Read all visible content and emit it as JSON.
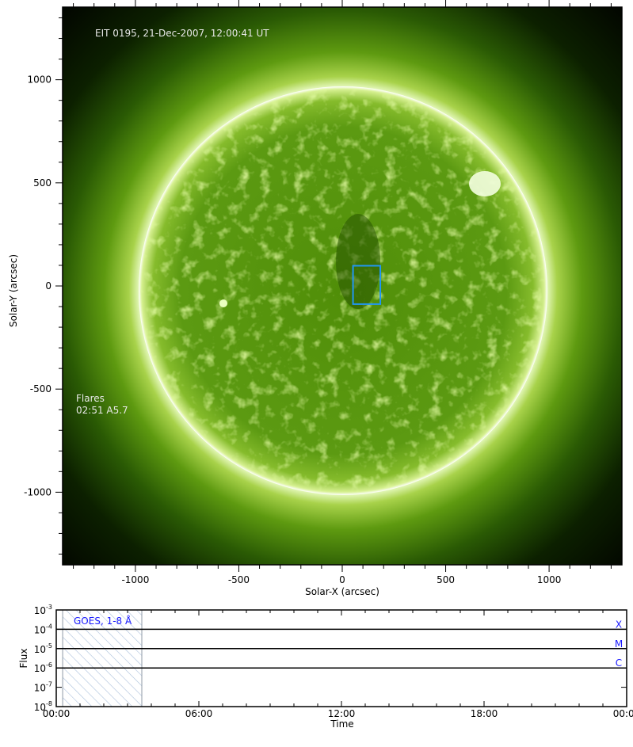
{
  "chart_data": [
    {
      "type": "heatmap",
      "title": "EIT 0195, 21-Dec-2007, 12:00:41 UT",
      "xlabel": "Solar-X (arcsec)",
      "ylabel": "Solar-Y (arcsec)",
      "xlim": [
        -1352,
        1352
      ],
      "ylim": [
        -1352,
        1352
      ],
      "xticks": [
        -1000,
        -500,
        0,
        500,
        1000
      ],
      "yticks": [
        1000,
        500,
        0,
        -500,
        -1000
      ],
      "minor_tick_step": 100,
      "solar_radius_arcsec": 985,
      "colormap": "green (EIT 195)",
      "region_box": {
        "x": [
          52,
          184
        ],
        "y": [
          -88,
          98
        ],
        "color": "#2196f3"
      },
      "annotation": {
        "title": "Flares",
        "entries": [
          "02:51 A5.7"
        ]
      }
    },
    {
      "type": "line",
      "legend": "GOES, 1-8 Å",
      "xlabel": "Time",
      "ylabel": "Flux",
      "xlim_hours": [
        0,
        24
      ],
      "xticks": [
        "00:00",
        "06:00",
        "12:00",
        "18:00",
        "00:00"
      ],
      "ylim": [
        1e-08,
        0.001
      ],
      "yscale": "log",
      "yticks": [
        {
          "base": "10",
          "exp": "-3"
        },
        {
          "base": "10",
          "exp": "-4"
        },
        {
          "base": "10",
          "exp": "-5"
        },
        {
          "base": "10",
          "exp": "-6"
        },
        {
          "base": "10",
          "exp": "-7"
        },
        {
          "base": "10",
          "exp": "-8"
        }
      ],
      "flare_class_levels": [
        {
          "label": "X",
          "flux": 0.0001
        },
        {
          "label": "M",
          "flux": 1e-05
        },
        {
          "label": "C",
          "flux": 1e-06
        }
      ],
      "no_data_span_hours": [
        0.27,
        3.6
      ],
      "series": []
    }
  ]
}
